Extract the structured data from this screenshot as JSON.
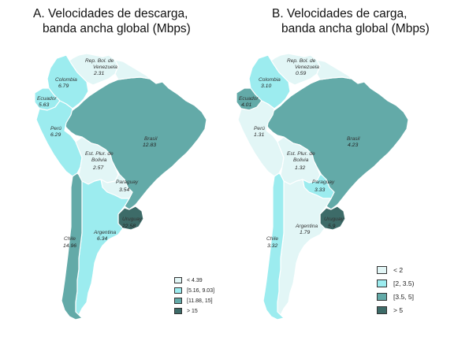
{
  "panel_a": {
    "title_line1": "A. Velocidades de descarga,",
    "title_line2": "banda ancha global (Mbps)",
    "countries": {
      "venezuela": {
        "name1": "Rep. Bol. de",
        "name2": "Venezuela",
        "value": "2.31"
      },
      "colombia": {
        "name": "Colombia",
        "value": "6.79"
      },
      "ecuador": {
        "name": "Ecuador",
        "value": "5.63"
      },
      "peru": {
        "name": "Perú",
        "value": "6.29"
      },
      "brasil": {
        "name": "Brasil",
        "value": "12.83"
      },
      "bolivia": {
        "name1": "Est. Plur. de",
        "name2": "Bolivia",
        "value": "2.57"
      },
      "paraguay": {
        "name": "Paraguay",
        "value": "3.54"
      },
      "argentina": {
        "name": "Argentina",
        "value": "6.34"
      },
      "uruguay": {
        "name": "Uruguay",
        "value": "22.58"
      },
      "chile": {
        "name": "Chile",
        "value": "14.96"
      }
    },
    "legend": [
      "< 4.39",
      "[5.16, 9.03]",
      "[11.88, 15]",
      "> 15"
    ]
  },
  "panel_b": {
    "title_line1": "B. Velocidades de carga,",
    "title_line2": "banda ancha global (Mbps)",
    "countries": {
      "venezuela": {
        "name1": "Rep. Bol. de",
        "name2": "Venezuela",
        "value": "0.59"
      },
      "colombia": {
        "name": "Colombia",
        "value": "3.10"
      },
      "ecuador": {
        "name": "Ecuador",
        "value": "4.01"
      },
      "peru": {
        "name": "Perú",
        "value": "1.31"
      },
      "brasil": {
        "name": "Brasil",
        "value": "4.23"
      },
      "bolivia": {
        "name1": "Est. Plur. de",
        "name2": "Bolivia",
        "value": "1.32"
      },
      "paraguay": {
        "name": "Paraguay",
        "value": "3.33"
      },
      "argentina": {
        "name": "Argentina",
        "value": "1.79"
      },
      "uruguay": {
        "name": "Uruguay",
        "value": "5.9"
      },
      "chile": {
        "name": "Chile",
        "value": "3.32"
      }
    },
    "legend": [
      "< 2",
      "[2, 3.5)",
      "[3.5, 5]",
      "> 5"
    ]
  },
  "colors": {
    "class1": "#e2f6f6",
    "class2": "#9cecef",
    "class3": "#63aaa8",
    "class4": "#3d6b68",
    "border": "#ffffff",
    "legend_border": "#333333"
  }
}
